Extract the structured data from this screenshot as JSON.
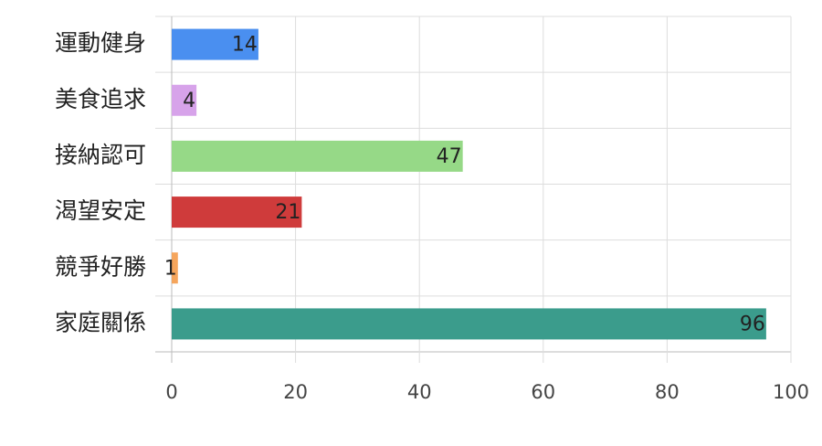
{
  "chart_data": {
    "type": "bar",
    "orientation": "horizontal",
    "categories": [
      "運動健身",
      "美食追求",
      "接納認可",
      "渴望安定",
      "競爭好勝",
      "家庭關係"
    ],
    "values": [
      14,
      4,
      47,
      21,
      1,
      96
    ],
    "colors": [
      "#4a8ff0",
      "#d7a3ea",
      "#96d987",
      "#cf3b3b",
      "#f5a55c",
      "#3b9c8c"
    ],
    "xlim": [
      0,
      100
    ],
    "xticks": [
      0,
      20,
      40,
      60,
      80,
      100
    ],
    "grid": true
  }
}
